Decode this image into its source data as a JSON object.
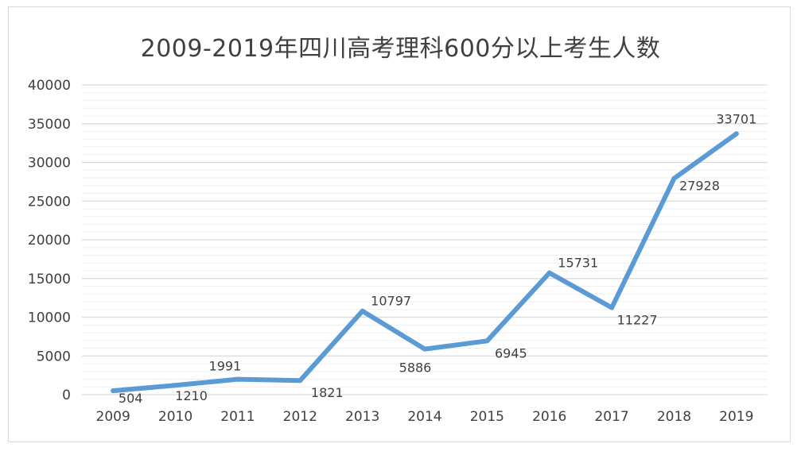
{
  "chart_data": {
    "type": "line",
    "title": "2009-2019年四川高考理科600分以上考生人数",
    "xlabel": "",
    "ylabel": "",
    "categories": [
      "2009",
      "2010",
      "2011",
      "2012",
      "2013",
      "2014",
      "2015",
      "2016",
      "2017",
      "2018",
      "2019"
    ],
    "series": [
      {
        "values": [
          504,
          1210,
          1991,
          1821,
          10797,
          5886,
          6945,
          15731,
          11227,
          27928,
          33701
        ],
        "data_labels": [
          "504",
          "1210",
          "1991",
          "1821",
          "10797",
          "5886",
          "6945",
          "15731",
          "11227",
          "27928",
          "33701"
        ]
      }
    ],
    "y_ticks": [
      "0",
      "5000",
      "10000",
      "15000",
      "20000",
      "25000",
      "30000",
      "35000",
      "40000"
    ],
    "ylim": [
      0,
      40000
    ],
    "grid": true,
    "legend": "none",
    "colors": {
      "line": "#5b9bd5",
      "grid_major": "#d9d9d9",
      "grid_minor": "#efefef",
      "text": "#404040"
    }
  }
}
